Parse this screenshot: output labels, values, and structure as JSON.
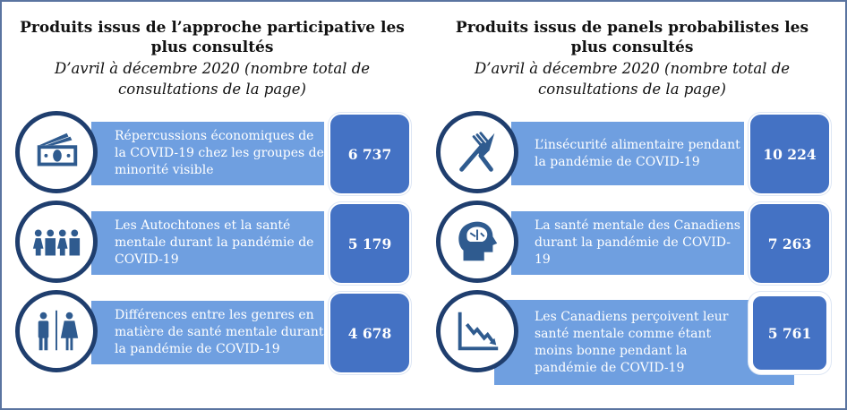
{
  "left": {
    "title": "Produits issus de l’approche participative les plus consultés",
    "subtitle": "D’avril à décembre 2020 (nombre total de consultations de la page)",
    "items": [
      {
        "icon": "money-icon",
        "label": "Répercussions économiques de la COVID-19 chez les groupes de minorité visible",
        "value": "6 737"
      },
      {
        "icon": "people-group-icon",
        "label": "Les Autochtones et la santé mentale durant la pandémie de COVID-19",
        "value": "5 179"
      },
      {
        "icon": "man-woman-icon",
        "label": "Différences entre les genres en matière de santé mentale durant la pandémie de COVID-19",
        "value": "4 678"
      }
    ]
  },
  "right": {
    "title": "Produits issus de panels probabilistes les plus consultés",
    "subtitle": "D’avril à décembre 2020 (nombre total de consultations de la page)",
    "items": [
      {
        "icon": "fork-knife-icon",
        "label": "L’insécurité alimentaire pendant la pandémie de COVID-19",
        "value": "10 224"
      },
      {
        "icon": "brain-head-icon",
        "label": "La santé mentale des Canadiens durant la pandémie de COVID-19",
        "value": "7 263"
      },
      {
        "icon": "declining-chart-icon",
        "label": "Les Canadiens perçoivent leur santé mentale comme étant moins bonne pendant la pandémie de COVID-19",
        "value": "5 761"
      }
    ]
  },
  "colors": {
    "band": "#6f9fe0",
    "number_box": "#4472c4",
    "icon": "#2f5b8f",
    "circle": "#1f3e6e"
  }
}
